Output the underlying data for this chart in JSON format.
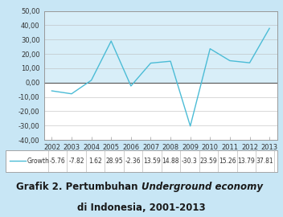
{
  "years": [
    2002,
    2003,
    2004,
    2005,
    2006,
    2007,
    2008,
    2009,
    2010,
    2011,
    2012,
    2013
  ],
  "growth": [
    -5.76,
    -7.82,
    1.62,
    28.95,
    -2.36,
    13.59,
    14.88,
    -30.3,
    23.59,
    15.26,
    13.79,
    37.81
  ],
  "line_color": "#4BBCD6",
  "background_color": "#C8E6F5",
  "plot_bg_above": "#D8EEF8",
  "plot_bg_below": "#FFFFFF",
  "ylim_min": -40,
  "ylim_max": 50,
  "yticks": [
    -40,
    -30,
    -20,
    -10,
    0,
    10,
    20,
    30,
    40,
    50
  ],
  "ytick_labels": [
    "-40,00",
    "-30,00",
    "-20,00",
    "-10,00",
    "0,00",
    "10,00",
    "20,00",
    "30,00",
    "40,00",
    "50,00"
  ],
  "legend_values": [
    "-5.76",
    "-7.82",
    "1.62",
    "28.95",
    "-2.36",
    "13.59",
    "14.88",
    "-30.3",
    "23.59",
    "15.26",
    "13.79",
    "37.81"
  ],
  "legend_label": "Growth",
  "title_fontsize": 8.5,
  "tick_fontsize": 6,
  "legend_fontsize": 5.5,
  "spine_color": "#999999",
  "grid_color": "#BBBBBB",
  "zero_line_color": "#555555",
  "text_color": "#333333",
  "title_color": "#1A1A1A"
}
